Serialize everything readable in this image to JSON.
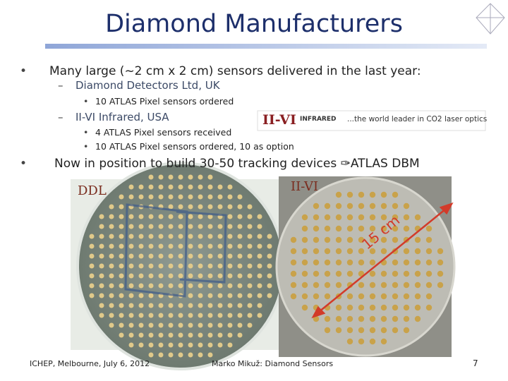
{
  "title": "Diamond Manufacturers",
  "bullets": [
    {
      "text": "Many large (~2 cm x 2 cm) sensors delivered in the last year:",
      "items": [
        {
          "text": "Diamond Detectors Ltd, UK",
          "items": [
            {
              "text": "10 ATLAS Pixel sensors ordered"
            }
          ]
        },
        {
          "text": "II-VI Infrared, USA",
          "items": [
            {
              "text": "4 ATLAS Pixel sensors received"
            },
            {
              "text": "10 ATLAS Pixel sensors ordered, 10 as option"
            }
          ]
        }
      ]
    },
    {
      "text": "Now in position to build 30-50 tracking devices ✑ATLAS DBM"
    }
  ],
  "logo": {
    "brand": "II-VI",
    "division": "INFRARED",
    "tagline": "...the world leader in CO2 laser optics"
  },
  "images": {
    "left_label": "DDL",
    "right_label": "II-VI",
    "scale_label": "15 cm"
  },
  "footer": {
    "left": "ICHEP, Melbourne, July 6, 2012",
    "center": "Marko Mikuž: Diamond Sensors",
    "page": "7"
  }
}
